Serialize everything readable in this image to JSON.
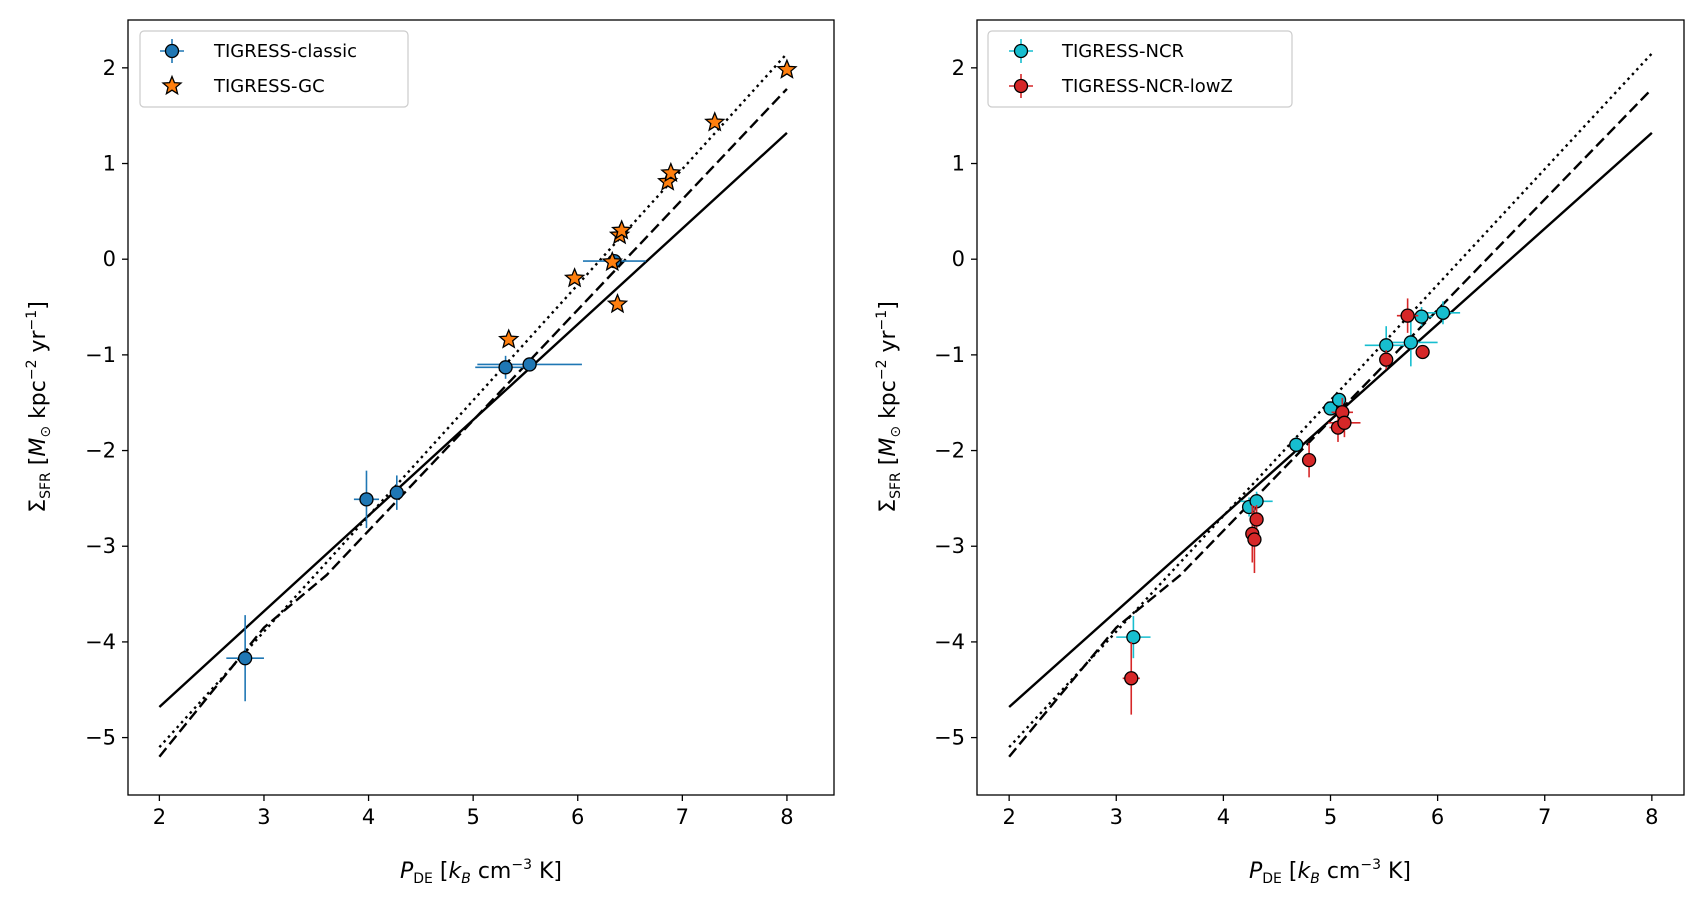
{
  "chart_data": [
    {
      "type": "scatter",
      "panel": "left",
      "xlabel": "P_DE [k_B cm^-3 K]",
      "ylabel": "Σ_SFR [M_⊙ kpc^-2 yr^-1]",
      "xlim": [
        1.7,
        8.45
      ],
      "ylim": [
        -5.6,
        2.5
      ],
      "xticks": [
        "2",
        "3",
        "4",
        "5",
        "6",
        "7",
        "8"
      ],
      "yticks": [
        "−5",
        "−4",
        "−3",
        "−2",
        "−1",
        "0",
        "1",
        "2"
      ],
      "grid": false,
      "legend_position": "upper left",
      "fit_lines": [
        {
          "style": "solid",
          "x": [
            2,
            8
          ],
          "y": [
            -4.68,
            1.32
          ]
        },
        {
          "style": "dashed",
          "x": [
            2,
            3,
            3.6,
            8
          ],
          "y": [
            -5.2,
            -3.85,
            -3.3,
            1.78
          ]
        },
        {
          "style": "dotted",
          "x": [
            2,
            8
          ],
          "y": [
            -5.1,
            2.15
          ]
        }
      ],
      "series": [
        {
          "name": "TIGRESS-classic",
          "marker": "circle",
          "color": "#1f77b4",
          "points": [
            {
              "x": 2.82,
              "y": -4.17,
              "xerr": 0.18,
              "yerr": 0.45
            },
            {
              "x": 3.98,
              "y": -2.51,
              "xerr": 0.12,
              "yerr": 0.3
            },
            {
              "x": 4.27,
              "y": -2.44,
              "xerr": 0.03,
              "yerr": 0.18
            },
            {
              "x": 5.31,
              "y": -1.13,
              "xerr": 0.29,
              "yerr": 0.12
            },
            {
              "x": 5.54,
              "y": -1.1,
              "xerr": 0.5,
              "yerr": 0.04
            },
            {
              "x": 6.35,
              "y": -0.02,
              "xerr": 0.3,
              "yerr": 0.04
            }
          ]
        },
        {
          "name": "TIGRESS-GC",
          "marker": "star",
          "color": "#ff7f0e",
          "points": [
            {
              "x": 5.34,
              "y": -0.84
            },
            {
              "x": 5.97,
              "y": -0.2
            },
            {
              "x": 6.33,
              "y": -0.03
            },
            {
              "x": 6.38,
              "y": -0.47
            },
            {
              "x": 6.4,
              "y": 0.25
            },
            {
              "x": 6.42,
              "y": 0.3
            },
            {
              "x": 6.86,
              "y": 0.81
            },
            {
              "x": 6.89,
              "y": 0.9
            },
            {
              "x": 7.31,
              "y": 1.43
            },
            {
              "x": 8.0,
              "y": 1.98
            }
          ]
        }
      ]
    },
    {
      "type": "scatter",
      "panel": "right",
      "xlabel": "P_DE [k_B cm^-3 K]",
      "ylabel": "Σ_SFR [M_⊙ kpc^-2 yr^-1]",
      "xlim": [
        1.7,
        8.3
      ],
      "ylim": [
        -5.6,
        2.5
      ],
      "xticks": [
        "2",
        "3",
        "4",
        "5",
        "6",
        "7",
        "8"
      ],
      "yticks": [
        "−5",
        "−4",
        "−3",
        "−2",
        "−1",
        "0",
        "1",
        "2"
      ],
      "grid": false,
      "legend_position": "upper left",
      "fit_lines": [
        {
          "style": "solid",
          "x": [
            2,
            8
          ],
          "y": [
            -4.68,
            1.32
          ]
        },
        {
          "style": "dashed",
          "x": [
            2,
            3,
            3.6,
            8
          ],
          "y": [
            -5.2,
            -3.85,
            -3.3,
            1.78
          ]
        },
        {
          "style": "dotted",
          "x": [
            2,
            8
          ],
          "y": [
            -5.1,
            2.15
          ]
        }
      ],
      "series": [
        {
          "name": "TIGRESS-NCR",
          "marker": "circle",
          "color": "#17becf",
          "points": [
            {
              "x": 3.16,
              "y": -3.95,
              "xerr": 0.16,
              "yerr": 0.22
            },
            {
              "x": 4.24,
              "y": -2.59,
              "xerr": 0.05,
              "yerr": 0.1
            },
            {
              "x": 4.31,
              "y": -2.53,
              "xerr": 0.15,
              "yerr": 0.1
            },
            {
              "x": 4.68,
              "y": -1.94,
              "xerr": 0.06,
              "yerr": 0.08
            },
            {
              "x": 5.0,
              "y": -1.56,
              "xerr": 0.06,
              "yerr": 0.06
            },
            {
              "x": 5.08,
              "y": -1.47,
              "xerr": 0.05,
              "yerr": 0.06
            },
            {
              "x": 5.52,
              "y": -0.9,
              "xerr": 0.2,
              "yerr": 0.2
            },
            {
              "x": 5.75,
              "y": -0.87,
              "xerr": 0.25,
              "yerr": 0.25
            },
            {
              "x": 5.85,
              "y": -0.6,
              "xerr": 0.1,
              "yerr": 0.1
            },
            {
              "x": 6.05,
              "y": -0.56,
              "xerr": 0.16,
              "yerr": 0.12
            }
          ]
        },
        {
          "name": "TIGRESS-NCR-lowZ",
          "marker": "circle",
          "color": "#d62728",
          "points": [
            {
              "x": 3.14,
              "y": -4.38,
              "xerr": 0.08,
              "yerr": 0.38
            },
            {
              "x": 4.27,
              "y": -2.87,
              "xerr": 0.04,
              "yerr": 0.3
            },
            {
              "x": 4.29,
              "y": -2.93,
              "xerr": 0.03,
              "yerr": 0.35
            },
            {
              "x": 4.31,
              "y": -2.72,
              "xerr": 0.03,
              "yerr": 0.15
            },
            {
              "x": 4.8,
              "y": -2.1,
              "xerr": 0.04,
              "yerr": 0.18
            },
            {
              "x": 5.07,
              "y": -1.76,
              "xerr": 0.08,
              "yerr": 0.15
            },
            {
              "x": 5.11,
              "y": -1.6,
              "xerr": 0.1,
              "yerr": 0.15
            },
            {
              "x": 5.13,
              "y": -1.71,
              "xerr": 0.15,
              "yerr": 0.15
            },
            {
              "x": 5.52,
              "y": -1.05,
              "xerr": 0.06,
              "yerr": 0.1
            },
            {
              "x": 5.72,
              "y": -0.59,
              "xerr": 0.1,
              "yerr": 0.18
            },
            {
              "x": 5.86,
              "y": -0.97,
              "xerr": 0.04,
              "yerr": 0.05
            }
          ]
        }
      ]
    }
  ]
}
